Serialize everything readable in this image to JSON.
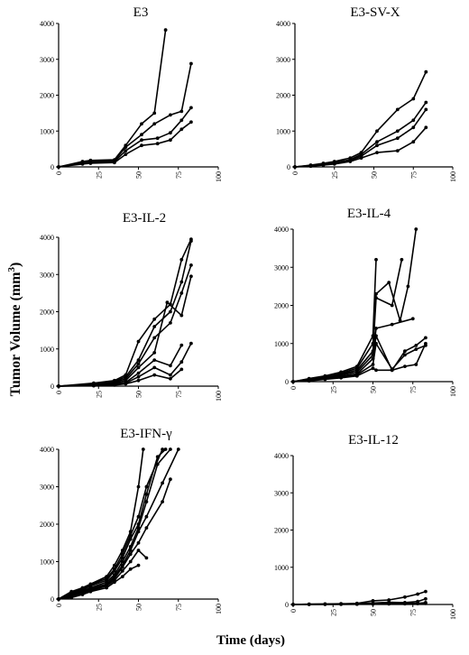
{
  "figure": {
    "ylabel": "Tumor Volume (mm",
    "ylabel_sup": "3",
    "ylabel_end": ")",
    "xlabel": "Time (days)"
  },
  "chart_data": [
    {
      "type": "line",
      "title": "E3",
      "xlim": [
        0,
        100
      ],
      "ylim": [
        0,
        4000
      ],
      "xticks": [
        "0",
        "25",
        "50",
        "75",
        "100"
      ],
      "yticks": [
        "0",
        "1000",
        "2000",
        "3000",
        "4000"
      ],
      "series": [
        {
          "x": [
            0,
            15,
            20,
            35,
            42,
            52,
            60,
            67
          ],
          "y": [
            0,
            150,
            180,
            200,
            600,
            1200,
            1500,
            3820
          ]
        },
        {
          "x": [
            0,
            15,
            20,
            35,
            42,
            52,
            60,
            70,
            77,
            83
          ],
          "y": [
            0,
            120,
            150,
            180,
            550,
            900,
            1200,
            1450,
            1550,
            2880
          ]
        },
        {
          "x": [
            0,
            15,
            20,
            35,
            42,
            52,
            62,
            70,
            77,
            83
          ],
          "y": [
            0,
            100,
            120,
            150,
            450,
            750,
            800,
            950,
            1300,
            1650
          ]
        },
        {
          "x": [
            0,
            15,
            20,
            35,
            42,
            52,
            62,
            70,
            77,
            83
          ],
          "y": [
            0,
            80,
            100,
            120,
            350,
            600,
            650,
            750,
            1050,
            1250
          ]
        }
      ]
    },
    {
      "type": "line",
      "title": "E3-SV-X",
      "xlim": [
        0,
        100
      ],
      "ylim": [
        0,
        4000
      ],
      "xticks": [
        "0",
        "25",
        "50",
        "75",
        "100"
      ],
      "yticks": [
        "0",
        "1000",
        "2000",
        "3000",
        "4000"
      ],
      "series": [
        {
          "x": [
            0,
            10,
            18,
            25,
            35,
            42,
            52,
            65,
            75,
            83
          ],
          "y": [
            0,
            50,
            100,
            150,
            250,
            400,
            1000,
            1600,
            1900,
            2650
          ]
        },
        {
          "x": [
            0,
            10,
            18,
            25,
            35,
            42,
            52,
            65,
            75,
            83
          ],
          "y": [
            0,
            40,
            80,
            120,
            200,
            350,
            700,
            1000,
            1300,
            1800
          ]
        },
        {
          "x": [
            0,
            10,
            18,
            25,
            35,
            42,
            52,
            65,
            75,
            83
          ],
          "y": [
            0,
            30,
            60,
            100,
            180,
            300,
            600,
            800,
            1100,
            1600
          ]
        },
        {
          "x": [
            0,
            10,
            18,
            25,
            35,
            42,
            52,
            65,
            75,
            83
          ],
          "y": [
            0,
            20,
            50,
            80,
            150,
            250,
            400,
            450,
            700,
            1100
          ]
        }
      ]
    },
    {
      "type": "line",
      "title": "E3-IL-2",
      "xlim": [
        0,
        100
      ],
      "ylim": [
        0,
        4000
      ],
      "xticks": [
        "0",
        "25",
        "50",
        "75",
        "100"
      ],
      "yticks": [
        "0",
        "1000",
        "2000",
        "3000",
        "4000"
      ],
      "series": [
        {
          "x": [
            0,
            22,
            35,
            42,
            50,
            60,
            70,
            77,
            83
          ],
          "y": [
            0,
            80,
            150,
            300,
            1200,
            1800,
            2200,
            3400,
            3950
          ]
        },
        {
          "x": [
            0,
            22,
            35,
            42,
            50,
            60,
            70,
            77,
            83
          ],
          "y": [
            0,
            60,
            120,
            250,
            700,
            1600,
            2000,
            2800,
            3900
          ]
        },
        {
          "x": [
            0,
            22,
            35,
            42,
            50,
            60,
            70,
            77,
            83
          ],
          "y": [
            0,
            50,
            100,
            200,
            600,
            1300,
            1700,
            2500,
            3250
          ]
        },
        {
          "x": [
            0,
            22,
            35,
            42,
            50,
            60,
            68,
            77,
            83
          ],
          "y": [
            0,
            40,
            80,
            150,
            500,
            900,
            2250,
            1900,
            2950
          ]
        },
        {
          "x": [
            0,
            22,
            35,
            42,
            50,
            60,
            70,
            77
          ],
          "y": [
            0,
            30,
            60,
            100,
            350,
            700,
            550,
            1100
          ]
        },
        {
          "x": [
            0,
            22,
            35,
            42,
            50,
            60,
            70,
            77,
            83
          ],
          "y": [
            0,
            20,
            40,
            80,
            250,
            500,
            300,
            650,
            1150
          ]
        },
        {
          "x": [
            0,
            22,
            35,
            42,
            50,
            60,
            70,
            77
          ],
          "y": [
            0,
            10,
            30,
            60,
            150,
            300,
            200,
            450
          ]
        }
      ]
    },
    {
      "type": "line",
      "title": "E3-IL-4",
      "xlim": [
        0,
        100
      ],
      "ylim": [
        0,
        4000
      ],
      "xticks": [
        "0",
        "25",
        "50",
        "75",
        "100"
      ],
      "yticks": [
        "0",
        "1000",
        "2000",
        "3000",
        "4000"
      ],
      "series": [
        {
          "x": [
            0,
            10,
            20,
            30,
            40,
            50,
            52
          ],
          "y": [
            0,
            80,
            150,
            250,
            400,
            1200,
            3200
          ]
        },
        {
          "x": [
            0,
            10,
            20,
            30,
            40,
            50,
            52,
            60,
            67,
            72,
            77
          ],
          "y": [
            0,
            70,
            130,
            220,
            350,
            1000,
            2300,
            2600,
            1600,
            2500,
            4000
          ]
        },
        {
          "x": [
            0,
            10,
            20,
            30,
            40,
            50,
            52,
            62,
            68
          ],
          "y": [
            0,
            60,
            120,
            200,
            300,
            800,
            2200,
            2000,
            3200
          ]
        },
        {
          "x": [
            0,
            10,
            20,
            30,
            40,
            50,
            52,
            62,
            75
          ],
          "y": [
            0,
            50,
            100,
            180,
            250,
            700,
            1400,
            1500,
            1650
          ]
        },
        {
          "x": [
            0,
            10,
            20,
            30,
            40,
            50,
            52,
            62,
            70,
            77,
            83
          ],
          "y": [
            0,
            40,
            90,
            150,
            200,
            600,
            1200,
            300,
            800,
            950,
            1150
          ]
        },
        {
          "x": [
            0,
            10,
            20,
            30,
            40,
            50,
            52,
            62,
            70,
            77,
            83
          ],
          "y": [
            0,
            30,
            80,
            120,
            180,
            450,
            1000,
            330,
            700,
            850,
            950
          ]
        },
        {
          "x": [
            0,
            10,
            20,
            30,
            40,
            50,
            52,
            62,
            70,
            77,
            83
          ],
          "y": [
            0,
            20,
            60,
            100,
            150,
            350,
            300,
            300,
            400,
            450,
            1000
          ]
        }
      ]
    },
    {
      "type": "line",
      "title": "E3-IFN-γ",
      "xlim": [
        0,
        100
      ],
      "ylim": [
        0,
        4000
      ],
      "xticks": [
        "0",
        "25",
        "50",
        "75",
        "100"
      ],
      "yticks": [
        "0",
        "1000",
        "2000",
        "3000",
        "4000"
      ],
      "series": [
        {
          "x": [
            0,
            8,
            15,
            20,
            30,
            35,
            40,
            45,
            50,
            53
          ],
          "y": [
            0,
            200,
            300,
            400,
            600,
            900,
            1300,
            1800,
            3000,
            4000
          ]
        },
        {
          "x": [
            0,
            8,
            15,
            20,
            30,
            35,
            40,
            45,
            50,
            55,
            65
          ],
          "y": [
            0,
            180,
            280,
            380,
            550,
            800,
            1200,
            1700,
            2200,
            3000,
            4000
          ]
        },
        {
          "x": [
            0,
            8,
            15,
            20,
            30,
            35,
            40,
            45,
            50,
            55,
            62,
            67
          ],
          "y": [
            0,
            150,
            250,
            350,
            500,
            750,
            1100,
            1600,
            2000,
            2800,
            3800,
            4000
          ]
        },
        {
          "x": [
            0,
            8,
            15,
            20,
            30,
            35,
            40,
            45,
            50,
            55,
            62,
            70
          ],
          "y": [
            0,
            120,
            220,
            300,
            450,
            650,
            1000,
            1400,
            1900,
            2600,
            3600,
            4000
          ]
        },
        {
          "x": [
            0,
            8,
            15,
            20,
            30,
            35,
            40,
            45,
            50,
            55,
            65,
            75
          ],
          "y": [
            0,
            100,
            200,
            280,
            400,
            600,
            900,
            1300,
            1800,
            2200,
            3100,
            4000
          ]
        },
        {
          "x": [
            0,
            8,
            15,
            20,
            30,
            35,
            40,
            45,
            50,
            55,
            65,
            70
          ],
          "y": [
            0,
            80,
            180,
            250,
            380,
            550,
            850,
            1200,
            1500,
            1900,
            2600,
            3200
          ]
        },
        {
          "x": [
            0,
            8,
            15,
            20,
            30,
            35,
            40,
            45,
            50,
            55
          ],
          "y": [
            0,
            60,
            150,
            220,
            350,
            500,
            750,
            1000,
            1300,
            1100
          ]
        },
        {
          "x": [
            0,
            8,
            15,
            20,
            30,
            35,
            40,
            45,
            50
          ],
          "y": [
            0,
            40,
            120,
            200,
            300,
            450,
            600,
            800,
            900
          ]
        }
      ]
    },
    {
      "type": "line",
      "title": "E3-IL-12",
      "xlim": [
        0,
        100
      ],
      "ylim": [
        0,
        4000
      ],
      "xticks": [
        "0",
        "25",
        "50",
        "75",
        "100"
      ],
      "yticks": [
        "0",
        "1000",
        "2000",
        "3000",
        "4000"
      ],
      "series": [
        {
          "x": [
            0,
            10,
            20,
            30,
            40,
            50,
            60,
            70,
            78,
            83
          ],
          "y": [
            0,
            10,
            15,
            20,
            30,
            100,
            120,
            200,
            280,
            350
          ]
        },
        {
          "x": [
            0,
            10,
            20,
            30,
            40,
            50,
            60,
            70,
            78,
            83
          ],
          "y": [
            0,
            5,
            10,
            15,
            20,
            40,
            60,
            50,
            80,
            150
          ]
        },
        {
          "x": [
            0,
            10,
            20,
            30,
            40,
            50,
            60,
            70,
            78,
            83
          ],
          "y": [
            0,
            3,
            5,
            8,
            10,
            20,
            30,
            40,
            30,
            50
          ]
        },
        {
          "x": [
            0,
            10,
            20,
            30,
            40,
            50,
            60,
            70,
            78,
            83
          ],
          "y": [
            0,
            2,
            3,
            5,
            8,
            10,
            15,
            20,
            25,
            30
          ]
        }
      ]
    }
  ]
}
